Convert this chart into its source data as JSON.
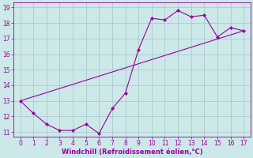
{
  "line1_x": [
    0,
    1,
    2,
    3,
    4,
    5,
    6,
    7,
    8,
    9,
    10,
    11,
    12,
    13,
    14,
    15,
    16,
    17
  ],
  "line1_y": [
    13.0,
    12.2,
    11.5,
    11.1,
    11.1,
    11.5,
    10.9,
    12.5,
    13.5,
    16.3,
    18.3,
    18.2,
    18.8,
    18.4,
    18.5,
    17.1,
    17.7,
    17.5
  ],
  "line2_x": [
    0,
    17
  ],
  "line2_y": [
    13.0,
    17.5
  ],
  "color": "#990099",
  "bg_color": "#cce8e8",
  "grid_color": "#aacccc",
  "xlabel": "Windchill (Refroidissement éolien,°C)",
  "xlim_min": -0.5,
  "xlim_max": 17.5,
  "ylim_min": 10.7,
  "ylim_max": 19.3,
  "xticks": [
    0,
    1,
    2,
    3,
    4,
    5,
    6,
    7,
    8,
    9,
    10,
    11,
    12,
    13,
    14,
    15,
    16,
    17
  ],
  "yticks": [
    11,
    12,
    13,
    14,
    15,
    16,
    17,
    18,
    19
  ],
  "tick_fontsize": 5.5,
  "xlabel_fontsize": 6.0
}
